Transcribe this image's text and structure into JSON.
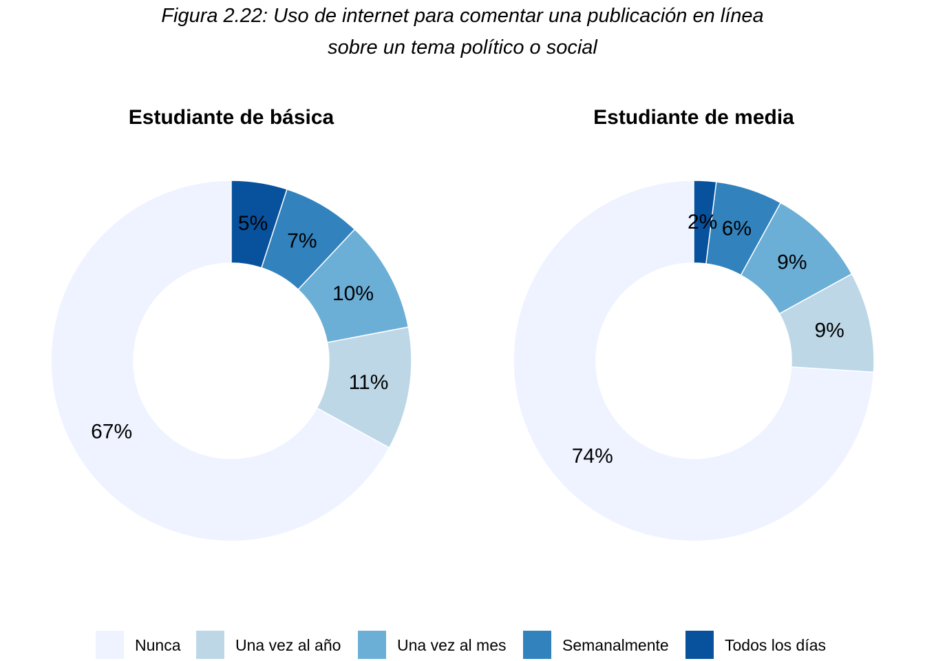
{
  "figure": {
    "title_line_1": "Figura 2.22: Uso de internet para comentar una publicación en línea",
    "title_line_2": "sobre un tema político o social"
  },
  "legend": {
    "items": [
      {
        "label": "Nunca",
        "color": "#EEF3FF"
      },
      {
        "label": "Una vez al año",
        "color": "#BDD7E7"
      },
      {
        "label": "Una vez al mes",
        "color": "#6BAED6"
      },
      {
        "label": "Semanalmente",
        "color": "#3182BD"
      },
      {
        "label": "Todos los días",
        "color": "#08519C"
      }
    ]
  },
  "chart_data": [
    {
      "type": "pie",
      "subtype": "donut",
      "title": "Estudiante de básica",
      "categories": [
        "Nunca",
        "Una vez al año",
        "Una vez al mes",
        "Semanalmente",
        "Todos los días"
      ],
      "values": [
        67,
        11,
        10,
        7,
        5
      ],
      "labels": [
        "67%",
        "11%",
        "10%",
        "7%",
        "5%"
      ],
      "colors": [
        "#EEF3FF",
        "#BDD7E7",
        "#6BAED6",
        "#3182BD",
        "#08519C"
      ],
      "legend": "bottom"
    },
    {
      "type": "pie",
      "subtype": "donut",
      "title": "Estudiante de media",
      "categories": [
        "Nunca",
        "Una vez al año",
        "Una vez al mes",
        "Semanalmente",
        "Todos los días"
      ],
      "values": [
        74,
        9,
        9,
        6,
        2
      ],
      "labels": [
        "74%",
        "9%",
        "9%",
        "6%",
        "2%"
      ],
      "colors": [
        "#EEF3FF",
        "#BDD7E7",
        "#6BAED6",
        "#3182BD",
        "#08519C"
      ],
      "legend": "bottom"
    }
  ]
}
